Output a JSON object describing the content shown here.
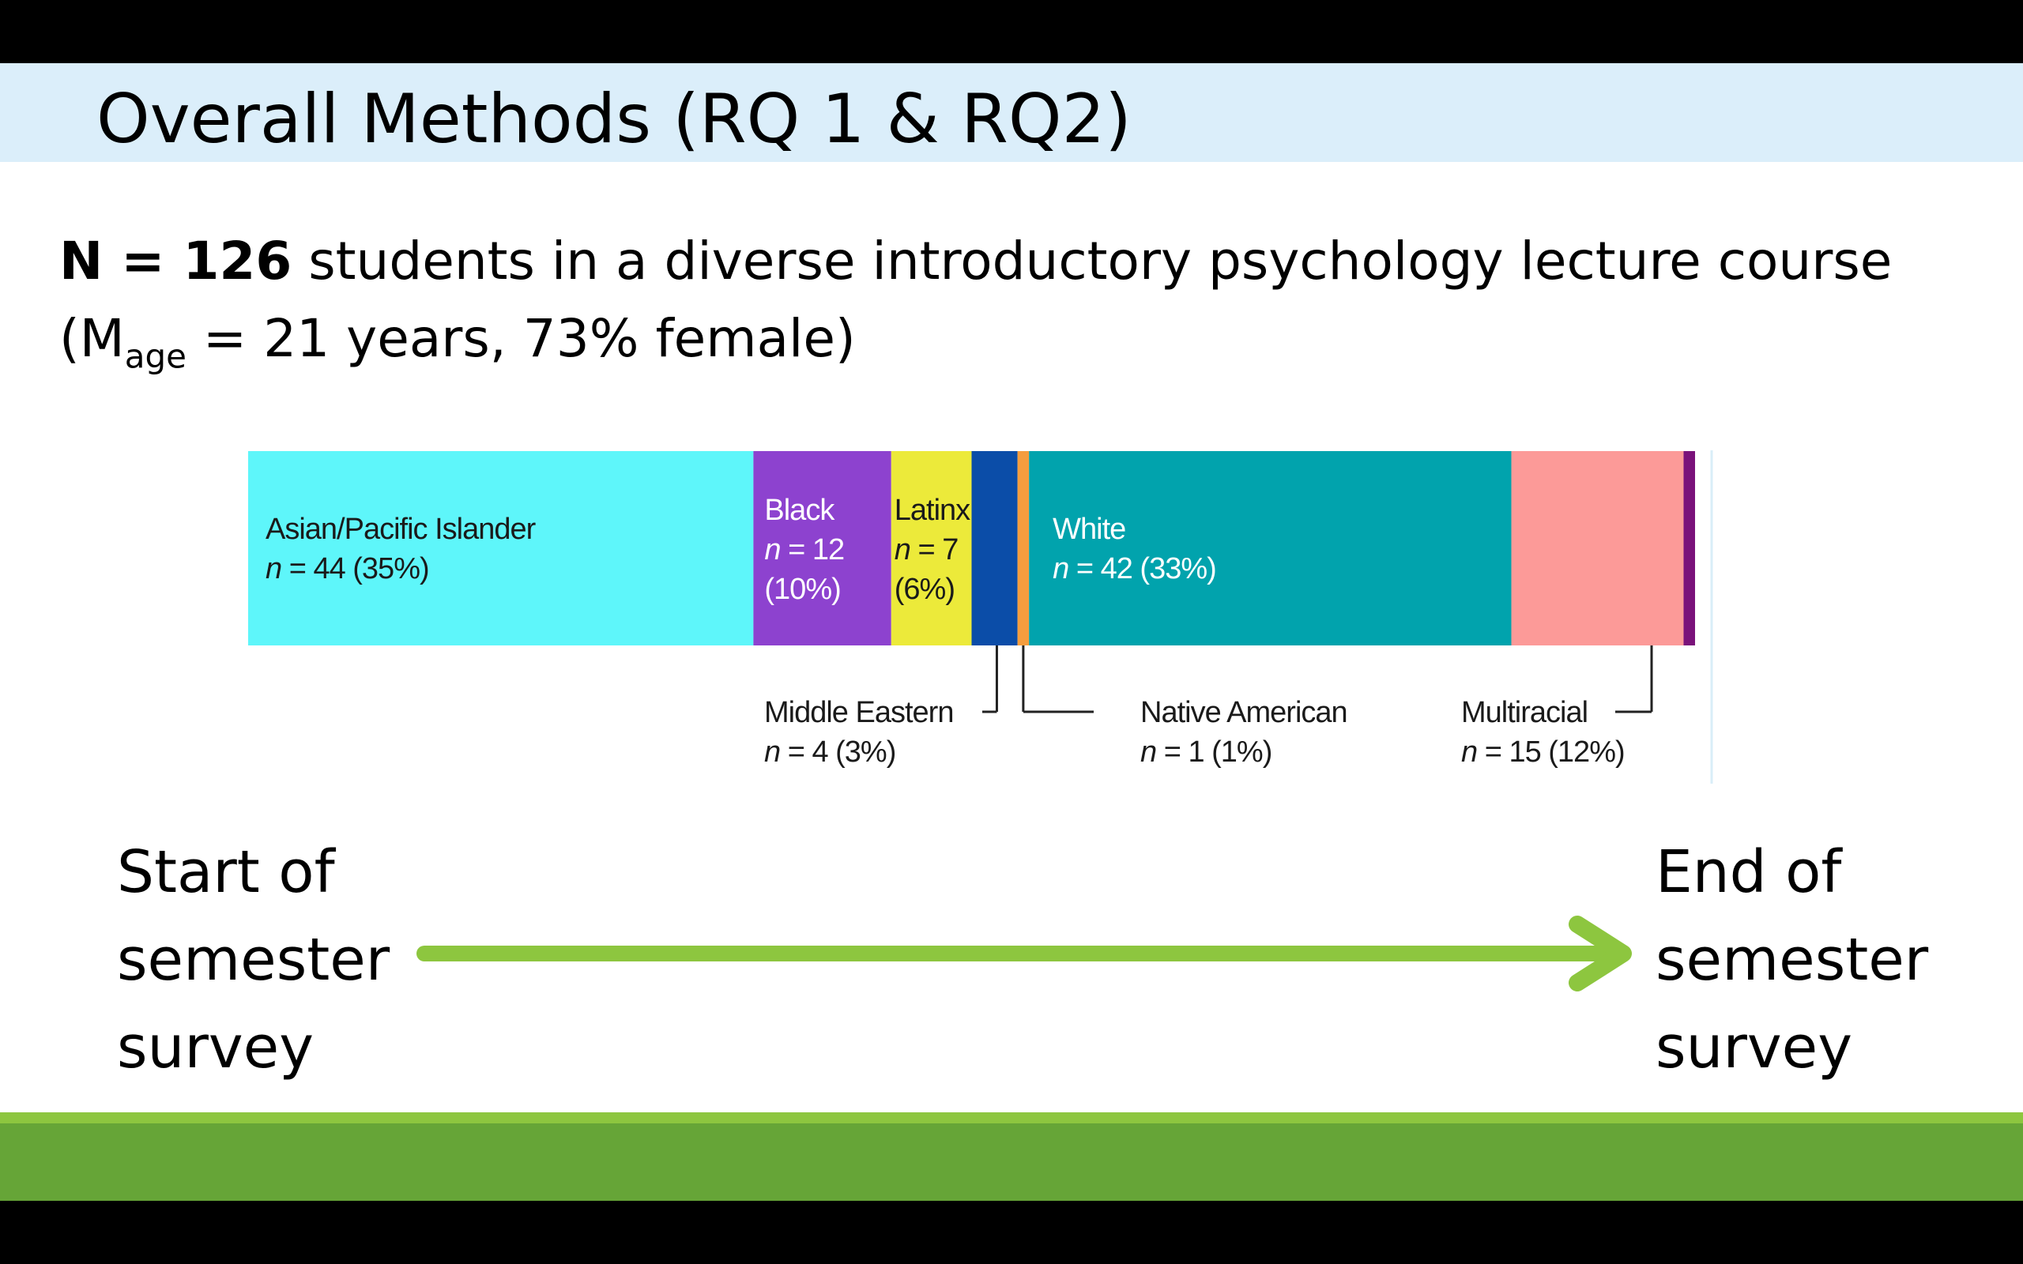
{
  "slide": {
    "title": "Overall Methods (RQ 1 & RQ2)",
    "sample": {
      "n_label": "N = 126",
      "description": " students in a diverse introductory psychology lecture course",
      "line2_open": "(M",
      "line2_sub": "age",
      "line2_rest": " = 21 years, 73% female)"
    },
    "timeline": {
      "start_lines": [
        "Start of",
        "semester",
        "survey"
      ],
      "end_lines": [
        "End of",
        "semester",
        "survey"
      ],
      "arrow_color": "#8dc63f"
    },
    "footer_colors": {
      "stripe": "#8dc63f",
      "bar": "#66a537"
    }
  },
  "chart_data": {
    "type": "bar",
    "stacked": true,
    "orientation": "horizontal",
    "total": 126,
    "segments": [
      {
        "name": "Asian/Pacific Islander",
        "n": 44,
        "percent": 35,
        "n_text": "n = 44 (35%)",
        "color": "#5ef6fa",
        "label_position": "inside"
      },
      {
        "name": "Black",
        "n": 12,
        "percent": 10,
        "n_text": "n = 12",
        "pct_text": "(10%)",
        "color": "#8d42cf",
        "label_position": "inside"
      },
      {
        "name": "Latinx",
        "n": 7,
        "percent": 6,
        "n_text": "n = 7",
        "pct_text": "(6%)",
        "color": "#ecea3a",
        "label_position": "inside"
      },
      {
        "name": "Middle Eastern",
        "n": 4,
        "percent": 3,
        "n_text": "n = 4 (3%)",
        "color": "#0b4da8",
        "label_position": "below-left"
      },
      {
        "name": "Native American",
        "n": 1,
        "percent": 1,
        "n_text": "n = 1 (1%)",
        "color": "#f59d3e",
        "label_position": "below-right"
      },
      {
        "name": "White",
        "n": 42,
        "percent": 33,
        "n_text": "n = 42 (33%)",
        "color": "#01a3ad",
        "label_position": "inside"
      },
      {
        "name": "Multiracial",
        "n": 15,
        "percent": 12,
        "n_text": "n = 15 (12%)",
        "color": "#fc9a98",
        "label_position": "below-left"
      },
      {
        "name": "",
        "n": 1,
        "percent": 1,
        "color": "#7a127a",
        "label_position": "none"
      }
    ]
  }
}
